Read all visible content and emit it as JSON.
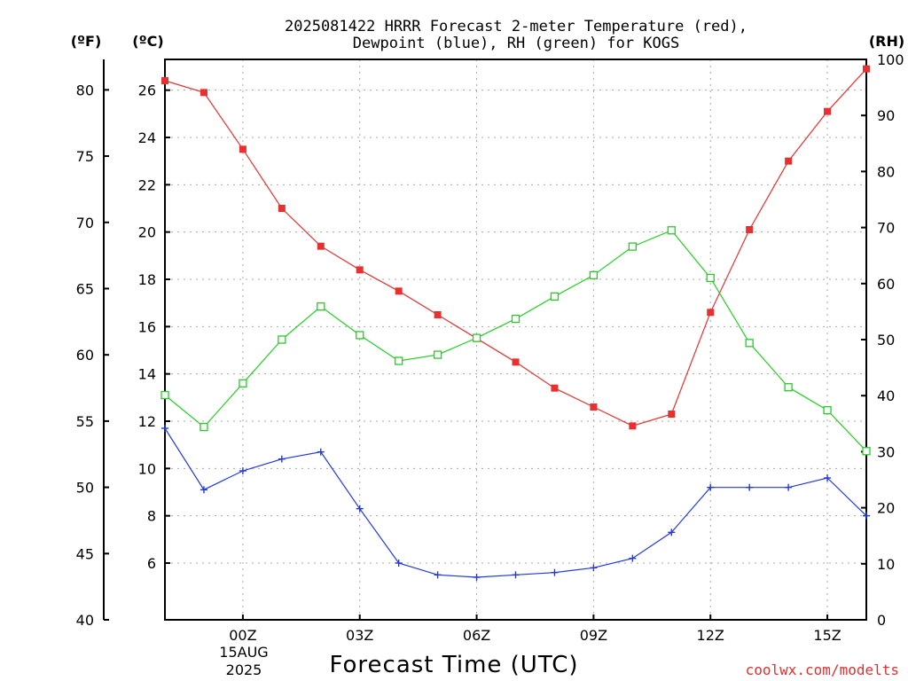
{
  "chart_data": {
    "type": "line",
    "title_line1": "2025081422 HRRR Forecast 2-meter Temperature (red),",
    "title_line2": "Dewpoint (blue), RH (green) for KOGS",
    "xlabel": "Forecast Time (UTC)",
    "credit": "coolwx.com/modelts",
    "date_label": [
      "15AUG",
      "2025"
    ],
    "units": {
      "fahrenheit": "(ºF)",
      "celsius": "(ºC)",
      "rh": "(RH)"
    },
    "x_range": [
      -2,
      16
    ],
    "x_ticks": [
      {
        "x": 0,
        "label": "00Z"
      },
      {
        "x": 3,
        "label": "03Z"
      },
      {
        "x": 6,
        "label": "06Z"
      },
      {
        "x": 9,
        "label": "09Z"
      },
      {
        "x": 12,
        "label": "12Z"
      },
      {
        "x": 15,
        "label": "15Z"
      }
    ],
    "celsius_axis": {
      "range": [
        3.6,
        27.3
      ],
      "ticks": [
        6,
        8,
        10,
        12,
        14,
        16,
        18,
        20,
        22,
        24,
        26
      ]
    },
    "fahrenheit_axis": {
      "range": [
        40,
        82.3
      ],
      "ticks": [
        40,
        45,
        50,
        55,
        60,
        65,
        70,
        75,
        80
      ]
    },
    "rh_axis": {
      "range": [
        0,
        100
      ],
      "ticks": [
        0,
        10,
        20,
        30,
        40,
        50,
        60,
        70,
        80,
        90,
        100
      ]
    },
    "grid": true,
    "x": [
      -2,
      -1,
      0,
      1,
      2,
      3,
      4,
      5,
      6,
      7,
      8,
      9,
      10,
      11,
      12,
      13,
      14,
      15,
      16
    ],
    "series": [
      {
        "key": "temperature",
        "color": "#e83030",
        "axis": "celsius",
        "marker": "filled-square",
        "values": [
          26.4,
          25.9,
          23.5,
          21.0,
          19.4,
          18.4,
          17.5,
          16.5,
          15.5,
          14.5,
          13.4,
          12.6,
          11.8,
          12.3,
          16.6,
          20.1,
          23.0,
          25.1,
          26.9
        ]
      },
      {
        "key": "dewpoint",
        "color": "#2038e0",
        "axis": "celsius",
        "marker": "plus",
        "values": [
          11.7,
          9.1,
          9.9,
          10.4,
          10.7,
          8.3,
          6.0,
          5.5,
          5.4,
          5.5,
          5.6,
          5.8,
          6.2,
          7.3,
          9.2,
          9.2,
          9.2,
          9.6,
          8.0
        ]
      },
      {
        "key": "rh",
        "color": "#20d020",
        "axis": "rh",
        "marker": "open-square",
        "values": [
          40.1,
          34.4,
          42.2,
          50.0,
          55.9,
          50.8,
          46.2,
          47.3,
          50.3,
          53.7,
          57.7,
          61.5,
          66.6,
          69.5,
          61.0,
          49.4,
          41.5,
          37.4,
          30.1
        ]
      }
    ]
  }
}
